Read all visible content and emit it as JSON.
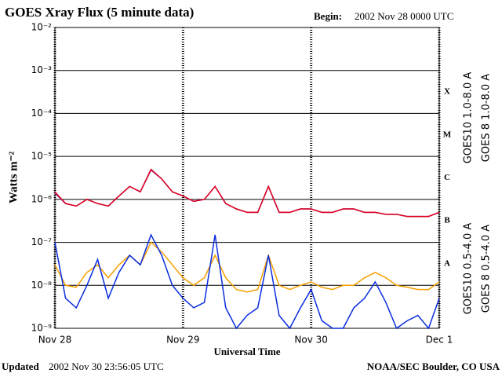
{
  "chart_data": {
    "type": "line",
    "title": "GOES Xray Flux (5 minute data)",
    "begin_label": "Begin:",
    "begin": "2002 Nov 28 0000 UTC",
    "ylabel": "Watts m⁻²",
    "xlabel": "Universal Time",
    "updated_label": "Updated",
    "updated": "2002 Nov 30 23:56:05 UTC",
    "credit": "NOAA/SEC Boulder, CO USA",
    "log_scale": true,
    "grid": true,
    "flare_classes": [
      "X",
      "M",
      "C",
      "B",
      "A"
    ],
    "xlim": [
      0,
      72
    ],
    "xticks": [
      {
        "value": 0,
        "label": "Nov 28"
      },
      {
        "value": 24,
        "label": "Nov 29"
      },
      {
        "value": 48,
        "label": "Nov 30"
      },
      {
        "value": 72,
        "label": "Dec 1"
      }
    ],
    "ylim": [
      1e-09,
      0.01
    ],
    "yticks": [
      {
        "value": 1e-09,
        "label": "10⁻⁹"
      },
      {
        "value": 1e-08,
        "label": "10⁻⁸"
      },
      {
        "value": 1e-07,
        "label": "10⁻⁷"
      },
      {
        "value": 1e-06,
        "label": "10⁻⁶"
      },
      {
        "value": 1e-05,
        "label": "10⁻⁵"
      },
      {
        "value": 0.0001,
        "label": "10⁻⁴"
      },
      {
        "value": 0.001,
        "label": "10⁻³"
      },
      {
        "value": 0.01,
        "label": "10⁻²"
      }
    ],
    "x": [
      0,
      2,
      4,
      6,
      8,
      10,
      12,
      14,
      16,
      18,
      20,
      22,
      24,
      26,
      28,
      30,
      32,
      34,
      36,
      38,
      40,
      42,
      44,
      46,
      48,
      50,
      52,
      54,
      56,
      58,
      60,
      62,
      64,
      66,
      68,
      70,
      72
    ],
    "series": [
      {
        "name": "GOES10 1.0-8.0 A",
        "color": "#7b2fb0",
        "values": [
          1.4e-06,
          8e-07,
          7e-07,
          1e-06,
          8e-07,
          7e-07,
          1.2e-06,
          2e-06,
          1.5e-06,
          4.8e-06,
          3e-06,
          1.5e-06,
          1.2e-06,
          9e-07,
          1e-06,
          2e-06,
          8e-07,
          6e-07,
          5e-07,
          5e-07,
          2e-06,
          5e-07,
          5e-07,
          6e-07,
          6e-07,
          5e-07,
          5e-07,
          6e-07,
          6e-07,
          5e-07,
          5e-07,
          4.5e-07,
          4.5e-07,
          4e-07,
          4e-07,
          4e-07,
          5e-07
        ]
      },
      {
        "name": "GOES 8 1.0-8.0 A",
        "color": "#e0001b",
        "values": [
          1.5e-06,
          8e-07,
          7e-07,
          1e-06,
          8e-07,
          7e-07,
          1.2e-06,
          2e-06,
          1.5e-06,
          5e-06,
          3e-06,
          1.5e-06,
          1.2e-06,
          9e-07,
          1e-06,
          2e-06,
          8e-07,
          6e-07,
          5e-07,
          5e-07,
          2e-06,
          5e-07,
          5e-07,
          6e-07,
          6e-07,
          5e-07,
          5e-07,
          6e-07,
          6e-07,
          5e-07,
          5e-07,
          4.5e-07,
          4.5e-07,
          4e-07,
          4e-07,
          4e-07,
          5e-07
        ]
      },
      {
        "name": "GOES10 0.5-4.0 A",
        "color": "#f5a000",
        "values": [
          3e-08,
          1e-08,
          9e-09,
          2e-08,
          3e-08,
          1.5e-08,
          3e-08,
          5e-08,
          3e-08,
          1e-07,
          6e-08,
          3e-08,
          1.5e-08,
          1e-08,
          1.5e-08,
          5e-08,
          1.5e-08,
          8e-09,
          7e-09,
          8e-09,
          5e-08,
          1e-08,
          8e-09,
          1e-08,
          1.2e-08,
          9e-09,
          8e-09,
          1e-08,
          1e-08,
          1.5e-08,
          2e-08,
          1.5e-08,
          1e-08,
          9e-09,
          8e-09,
          8e-09,
          1.2e-08
        ]
      },
      {
        "name": "GOES 8 0.5-4.0 A",
        "color": "#0a2de0",
        "values": [
          1e-07,
          5e-09,
          3e-09,
          1e-08,
          4e-08,
          5e-09,
          2e-08,
          5e-08,
          3e-08,
          1.5e-07,
          5e-08,
          1e-08,
          5e-09,
          3e-09,
          4e-09,
          1.5e-07,
          3e-09,
          1e-09,
          2e-09,
          3e-09,
          5e-08,
          2e-09,
          1e-09,
          3e-09,
          8e-09,
          1.5e-09,
          1e-09,
          1e-09,
          3e-09,
          5e-09,
          1.2e-08,
          4e-09,
          1e-09,
          1.5e-09,
          2e-09,
          1e-09,
          5e-09
        ]
      }
    ]
  }
}
